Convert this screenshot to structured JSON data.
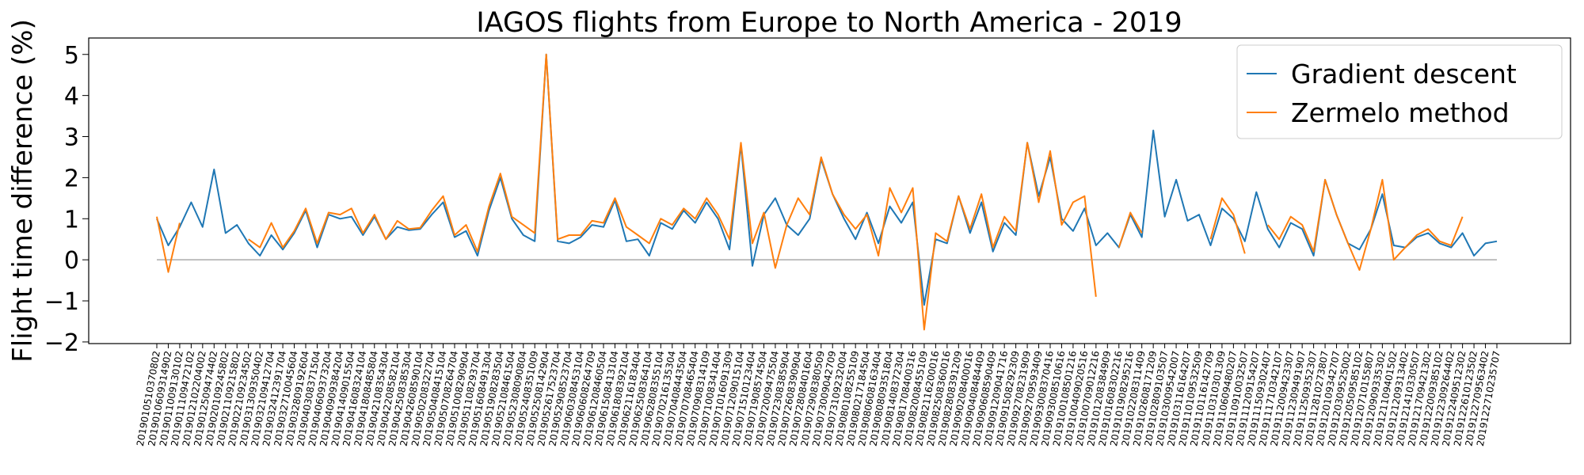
{
  "chart_data": {
    "type": "line",
    "title": "IAGOS flights from Europe to North America - 2019",
    "y_label": "Flight time difference (%)",
    "categories": [
      "2019010510370802",
      "2019010609314902",
      "2019011009130102",
      "2019011109472102",
      "2019012102204002",
      "2019012509474402",
      "2019020109245802",
      "2019021109215802",
      "2019022109234502",
      "2019031309350402",
      "2019032109412704",
      "2019032412391704",
      "2019032710045604",
      "2019032809192604",
      "2019040308371504",
      "2019040609373204",
      "2019040909384204",
      "2019041409015504",
      "2019041608324104",
      "2019041808485804",
      "2019042108354304",
      "2019042208582104",
      "2019042508385304",
      "2019042608590104",
      "2019050208322704",
      "2019050408415104",
      "2019050708264704",
      "2019051008290904",
      "2019051108293704",
      "2019051608491304",
      "2019051908283504",
      "2019052108461504",
      "2019052308090804",
      "2019052408351009",
      "2019052508142904",
      "2019052617523704",
      "2019052908523704",
      "2019060308453104",
      "2019060608264709",
      "2019061208460504",
      "2019061508413104",
      "2019061808392104",
      "2019062116183404",
      "2019062508364104",
      "2019062808355104",
      "2019070216135304",
      "2019070408443504",
      "2019070708465404",
      "2019070908314109",
      "2019071008341404",
      "2019071016091309",
      "2019071209015104",
      "2019071510123404",
      "2019071908574504",
      "2019072009475504",
      "2019072308385904",
      "2019072608390904",
      "2019072808401604",
      "2019072908380509",
      "2019073009042709",
      "2019073109232004",
      "2019080108255109",
      "2019080217184504",
      "2019080608163404",
      "2019080809351804",
      "2019081408372304",
      "2019081708400316",
      "2019082008455109",
      "2019082116200016",
      "2019082508360016",
      "2019082808391209",
      "2019090208400016",
      "2019090408484409",
      "2019090608590409",
      "2019091209041716",
      "2019091508292309",
      "2019092708231909",
      "2019092709593409",
      "2019093008370416",
      "2019093008510616",
      "2019100108501216",
      "2019100409020516",
      "2019100709012216",
      "2019101208384909",
      "2019101608302216",
      "2019101908295216",
      "2019102208311409",
      "2019102608171209",
      "2019102809103507",
      "2019103009542007",
      "2019103116164207",
      "2019110109532509",
      "2019110116142709",
      "2019110310301309",
      "2019110609480207",
      "2019110910032507",
      "2019111209154207",
      "2019111509302407",
      "2019111710342107",
      "2019112009423307",
      "2019112309491907",
      "2019112509352307",
      "2019112810273807",
      "2019120109342707",
      "2019120309525002",
      "2019120509585102",
      "2019120710155807",
      "2019120909335302",
      "2019121109401502",
      "2019121209313402",
      "2019121410330507",
      "2019121709421302",
      "2019122009385102",
      "2019122309264402",
      "2019122409512302",
      "2019122610123502",
      "2019122709563402",
      "2019122710235707"
    ],
    "series": [
      {
        "name": "Gradient descent",
        "color": "#1f77b4",
        "values": [
          1.0,
          0.35,
          0.8,
          1.4,
          0.8,
          2.2,
          0.65,
          0.85,
          0.4,
          0.1,
          0.6,
          0.25,
          0.65,
          1.2,
          0.3,
          1.1,
          1.0,
          1.05,
          0.6,
          1.05,
          0.5,
          0.8,
          0.72,
          0.75,
          1.1,
          1.4,
          0.55,
          0.7,
          0.1,
          1.2,
          2.0,
          1.0,
          0.6,
          0.45,
          5.0,
          0.45,
          0.4,
          0.55,
          0.85,
          0.8,
          1.45,
          0.45,
          0.5,
          0.1,
          0.9,
          0.75,
          1.2,
          0.9,
          1.4,
          1.0,
          0.25,
          2.8,
          -0.15,
          1.1,
          1.5,
          0.85,
          0.6,
          1.0,
          2.45,
          1.6,
          1.0,
          0.5,
          1.15,
          0.4,
          1.3,
          0.9,
          1.4,
          -1.1,
          0.5,
          0.4,
          1.55,
          0.65,
          1.4,
          0.2,
          0.9,
          0.6,
          2.85,
          1.55,
          2.5,
          1.0,
          0.7,
          1.25,
          0.35,
          0.65,
          0.3,
          1.1,
          0.55,
          3.15,
          1.05,
          1.95,
          0.95,
          1.1,
          0.35,
          1.25,
          1.0,
          0.45,
          1.65,
          0.75,
          0.3,
          0.9,
          0.75,
          0.1,
          1.95,
          1.1,
          0.4,
          0.25,
          0.75,
          1.6,
          0.35,
          0.3,
          0.55,
          0.65,
          0.4,
          0.3,
          0.65,
          0.1,
          0.4,
          0.45
        ]
      },
      {
        "name": "Zermelo method",
        "color": "#ff7f0e",
        "values": [
          1.05,
          -0.3,
          0.9,
          null,
          null,
          null,
          null,
          null,
          0.5,
          0.3,
          0.9,
          0.3,
          0.7,
          1.25,
          0.4,
          1.15,
          1.1,
          1.25,
          0.65,
          1.1,
          0.5,
          0.95,
          0.75,
          0.78,
          1.2,
          1.55,
          0.6,
          0.85,
          0.2,
          1.3,
          2.1,
          1.05,
          0.85,
          0.65,
          5.0,
          0.5,
          0.6,
          0.6,
          0.95,
          0.9,
          1.5,
          0.8,
          0.6,
          0.4,
          1.0,
          0.85,
          1.25,
          1.0,
          1.5,
          1.1,
          0.5,
          2.85,
          0.4,
          1.15,
          -0.2,
          0.85,
          1.5,
          1.1,
          2.5,
          1.6,
          1.1,
          0.75,
          1.1,
          0.1,
          1.75,
          1.15,
          1.75,
          -1.7,
          0.65,
          0.45,
          1.55,
          0.75,
          1.6,
          0.3,
          1.05,
          0.7,
          2.85,
          1.4,
          2.65,
          0.85,
          1.4,
          1.55,
          -0.9,
          null,
          0.3,
          1.15,
          0.65,
          null,
          null,
          null,
          null,
          null,
          0.5,
          1.5,
          1.1,
          0.15,
          null,
          0.85,
          0.5,
          1.05,
          0.85,
          0.2,
          1.95,
          1.1,
          0.4,
          -0.25,
          0.75,
          1.95,
          0.0,
          0.3,
          0.6,
          0.75,
          0.45,
          0.35,
          1.05,
          null,
          null,
          null
        ]
      }
    ],
    "ylim": [
      -2.04,
      5.4
    ],
    "yticks": [
      {
        "value": -2,
        "label": "−2"
      },
      {
        "value": -1,
        "label": "−1"
      },
      0,
      1,
      2,
      3,
      4,
      5
    ],
    "hline": 0,
    "legend": "upper right"
  }
}
